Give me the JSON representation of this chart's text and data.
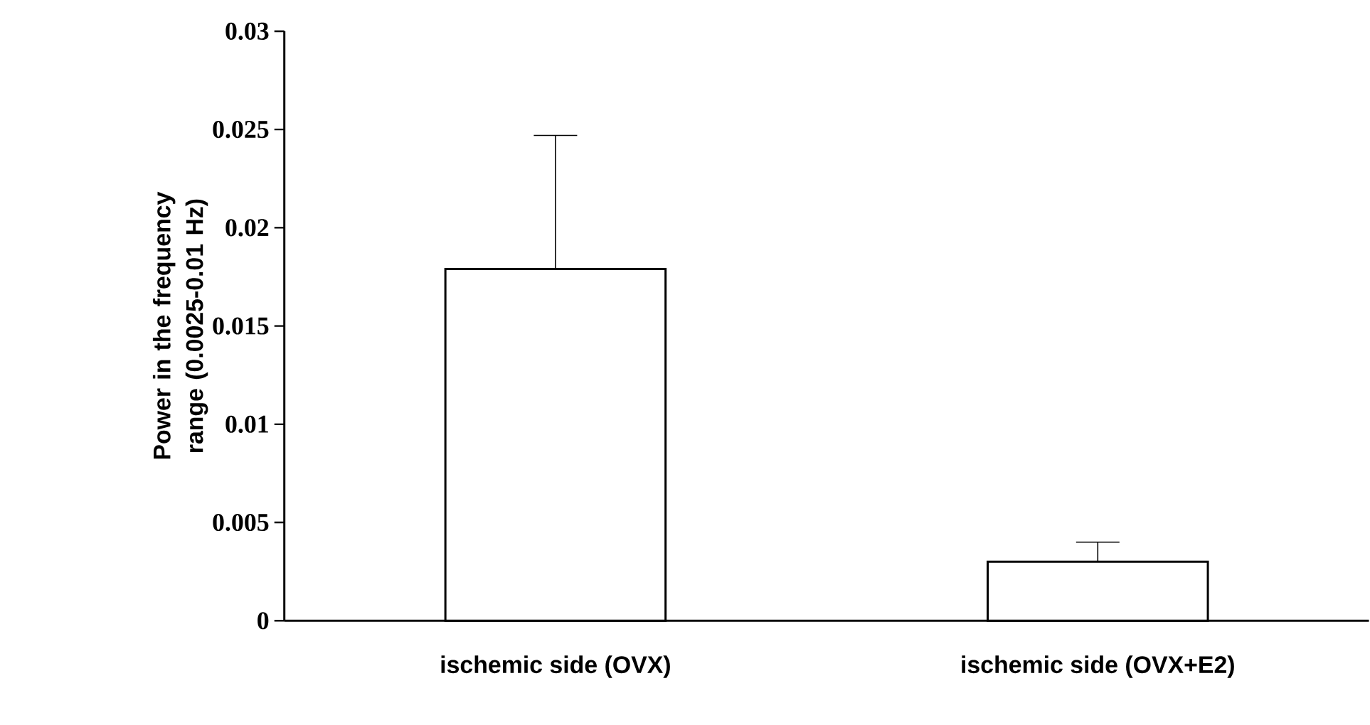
{
  "chart_data": {
    "type": "bar",
    "ylabel": "Power in the frequency range (0.0025-0.01 Hz)",
    "categories": [
      "ischemic side (OVX)",
      "ischemic side (OVX+E2)"
    ],
    "values": [
      0.0179,
      0.003
    ],
    "errors": [
      [
        0.0179,
        0.0247
      ],
      [
        0.003,
        0.004
      ]
    ],
    "color": "#ffffff",
    "ylim": [
      0,
      0.03
    ],
    "yticks": [
      0,
      0.005,
      0.01,
      0.015,
      0.02,
      0.025,
      0.03
    ],
    "grid": false
  }
}
